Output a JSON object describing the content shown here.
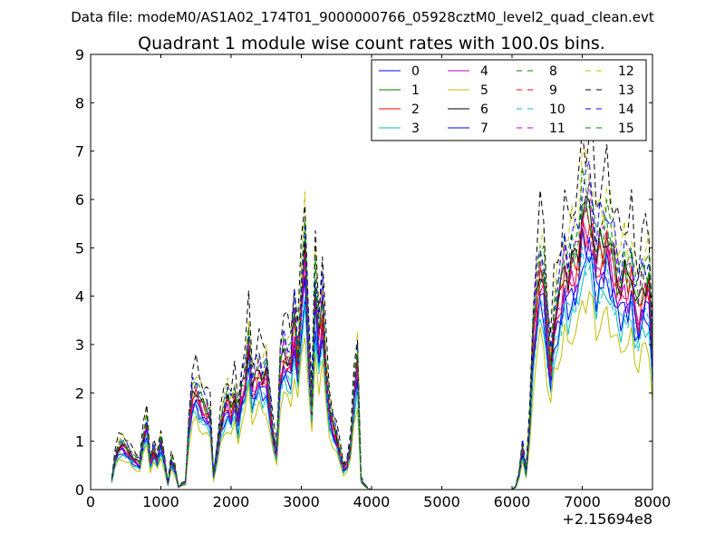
{
  "suptitle": "Data file: modeM0/AS1A02_174T01_9000000766_05928cztM0_level2_quad_clean.evt",
  "chart_data": {
    "type": "line",
    "title": "Quadrant 1 module wise count rates with 100.0s bins.",
    "xlabel": "",
    "ylabel": "",
    "x_offset_label": "+2.15694e8",
    "xlim": [
      0,
      8000
    ],
    "ylim": [
      0,
      9
    ],
    "x_ticks": [
      0,
      1000,
      2000,
      3000,
      4000,
      5000,
      6000,
      7000,
      8000
    ],
    "x_tick_labels": [
      "0",
      "1000",
      "2000",
      "3000",
      "4000",
      "5000",
      "6000",
      "7000",
      "8000"
    ],
    "y_ticks": [
      0,
      1,
      2,
      3,
      4,
      5,
      6,
      7,
      8,
      9
    ],
    "y_tick_labels": [
      "0",
      "1",
      "2",
      "3",
      "4",
      "5",
      "6",
      "7",
      "8",
      "9"
    ],
    "grid": false,
    "legend_position": "top-right",
    "legend_columns": 4,
    "x": [
      300,
      350,
      400,
      450,
      500,
      550,
      600,
      650,
      700,
      750,
      800,
      850,
      900,
      950,
      1000,
      1050,
      1100,
      1150,
      1200,
      1250,
      1300,
      1350,
      1400,
      1450,
      1500,
      1550,
      1600,
      1650,
      1700,
      1750,
      1800,
      1850,
      1900,
      1950,
      2000,
      2050,
      2100,
      2150,
      2200,
      2250,
      2300,
      2350,
      2400,
      2450,
      2500,
      2550,
      2600,
      2650,
      2700,
      2750,
      2800,
      2850,
      2900,
      2950,
      3000,
      3050,
      3100,
      3150,
      3200,
      3250,
      3300,
      3350,
      3400,
      3450,
      3500,
      3550,
      3600,
      3650,
      3700,
      3750,
      3800,
      3850,
      3900,
      3950,
      4000,
      6000,
      6050,
      6100,
      6150,
      6200,
      6250,
      6300,
      6350,
      6400,
      6450,
      6500,
      6550,
      6600,
      6650,
      6700,
      6750,
      6800,
      6850,
      6900,
      6950,
      7000,
      7050,
      7100,
      7150,
      7200,
      7250,
      7300,
      7350,
      7400,
      7450,
      7500,
      7550,
      7600,
      7650,
      7700,
      7750,
      7800,
      7850,
      7900,
      7950,
      8000
    ],
    "base_profile": [
      0.18,
      0.6,
      0.8,
      0.85,
      0.78,
      0.7,
      0.6,
      0.55,
      0.5,
      0.95,
      1.25,
      0.5,
      0.75,
      0.55,
      0.9,
      0.55,
      0.1,
      0.55,
      0.4,
      0.05,
      0.1,
      0.12,
      1.2,
      1.8,
      1.9,
      1.7,
      1.6,
      1.5,
      1.4,
      0.25,
      0.7,
      1.2,
      1.5,
      1.7,
      1.5,
      1.8,
      1.3,
      1.9,
      2.1,
      2.8,
      1.9,
      2.1,
      2.3,
      2.1,
      2.2,
      1.6,
      1.0,
      0.7,
      2.3,
      2.6,
      2.5,
      2.4,
      3.2,
      2.4,
      3.6,
      4.5,
      2.8,
      1.5,
      3.8,
      2.8,
      3.5,
      2.3,
      1.5,
      1.2,
      1.0,
      0.7,
      0.4,
      0.5,
      0.8,
      1.8,
      2.4,
      0.2,
      0.08,
      0.02,
      0.0,
      0.0,
      0.05,
      0.3,
      0.8,
      0.3,
      1.2,
      2.8,
      3.6,
      4.2,
      4.0,
      3.0,
      2.3,
      3.2,
      3.5,
      3.8,
      4.3,
      4.0,
      4.3,
      4.3,
      4.5,
      5.3,
      5.2,
      5.3,
      5.0,
      4.3,
      4.6,
      4.6,
      4.9,
      4.5,
      4.3,
      4.0,
      3.8,
      4.1,
      3.9,
      4.2,
      3.6,
      3.4,
      3.8,
      3.9,
      3.9,
      2.5
    ],
    "series": [
      {
        "name": "0",
        "scale": 0.92
      },
      {
        "name": "1",
        "scale": 1.08
      },
      {
        "name": "2",
        "scale": 1.03
      },
      {
        "name": "3",
        "scale": 0.86
      },
      {
        "name": "4",
        "scale": 1.0
      },
      {
        "name": "5",
        "scale": 0.75
      },
      {
        "name": "6",
        "scale": 1.1
      },
      {
        "name": "7",
        "scale": 0.95
      },
      {
        "name": "8",
        "scale": 1.15
      },
      {
        "name": "9",
        "scale": 1.05
      },
      {
        "name": "10",
        "scale": 0.9
      },
      {
        "name": "11",
        "scale": 1.12
      },
      {
        "name": "12",
        "scale": 1.28
      },
      {
        "name": "13",
        "scale": 1.38
      },
      {
        "name": "14",
        "scale": 1.22
      },
      {
        "name": "15",
        "scale": 1.18
      }
    ],
    "series_colors": [
      "#0000ff",
      "#008000",
      "#ff0000",
      "#00bfbf",
      "#bf00bf",
      "#bfbf00",
      "#000000",
      "#0000ff",
      "#008000",
      "#ff0000",
      "#00bfbf",
      "#bf00bf",
      "#bfbf00",
      "#000000",
      "#0000ff",
      "#008000"
    ],
    "series_dashed": [
      false,
      false,
      false,
      false,
      false,
      false,
      false,
      false,
      true,
      true,
      true,
      true,
      true,
      true,
      true,
      true
    ]
  }
}
